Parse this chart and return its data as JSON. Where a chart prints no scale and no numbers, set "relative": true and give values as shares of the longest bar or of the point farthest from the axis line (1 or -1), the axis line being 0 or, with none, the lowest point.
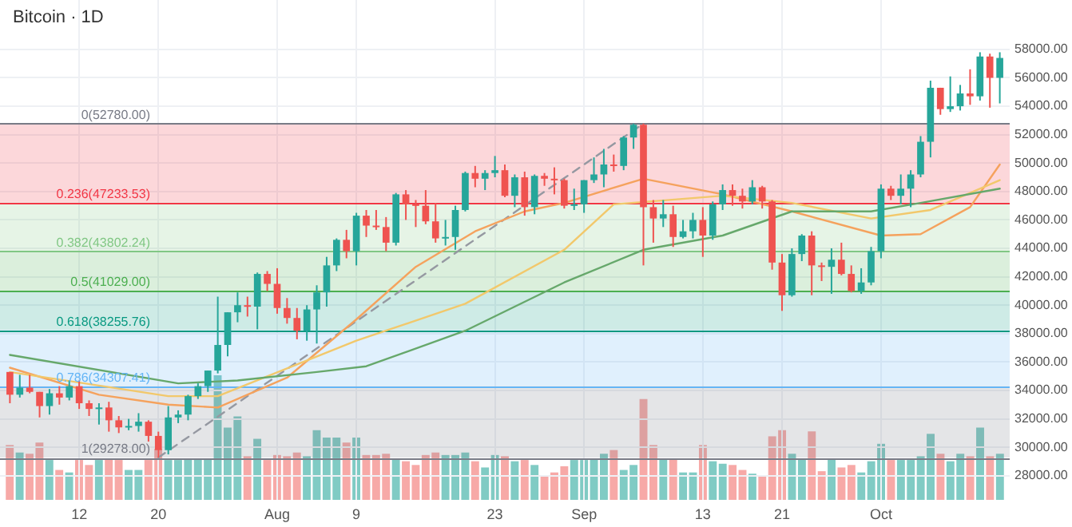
{
  "chart_data": [
    {
      "type": "candlestick",
      "title": "Bitcoin · 1D",
      "grid": true,
      "x": [
        "--07-05",
        "--07-06",
        "--07-07",
        "--07-08",
        "--07-09",
        "--07-10",
        "--07-11",
        "--07-12",
        "--07-13",
        "--07-14",
        "--07-15",
        "--07-16",
        "--07-17",
        "--07-18",
        "--07-19",
        "--07-20",
        "--07-21",
        "--07-22",
        "--07-23",
        "--07-24",
        "--07-25",
        "--07-26",
        "--07-27",
        "--07-28",
        "--07-29",
        "--07-30",
        "--07-31",
        "--08-01",
        "--08-02",
        "--08-03",
        "--08-04",
        "--08-05",
        "--08-06",
        "--08-07",
        "--08-08",
        "--08-09",
        "--08-10",
        "--08-11",
        "--08-12",
        "--08-13",
        "--08-14",
        "--08-15",
        "--08-16",
        "--08-17",
        "--08-18",
        "--08-19",
        "--08-20",
        "--08-21",
        "--08-22",
        "--08-23",
        "--08-24",
        "--08-25",
        "--08-26",
        "--08-27",
        "--08-28",
        "--08-29",
        "--08-30",
        "--08-31",
        "--09-01",
        "--09-02",
        "--09-03",
        "--09-04",
        "--09-05",
        "--09-06",
        "--09-07",
        "--09-08",
        "--09-09",
        "--09-10",
        "--09-11",
        "--09-12",
        "--09-13",
        "--09-14",
        "--09-15",
        "--09-16",
        "--09-17",
        "--09-18",
        "--09-19",
        "--09-20",
        "--09-21",
        "--09-22",
        "--09-23",
        "--09-24",
        "--09-25",
        "--09-26",
        "--09-27",
        "--09-28",
        "--09-29",
        "--09-30",
        "--10-01",
        "--10-02",
        "--10-03",
        "--10-04",
        "--10-05",
        "--10-06",
        "--10-07",
        "--10-08",
        "--10-09",
        "--10-10",
        "--10-11",
        "--10-12",
        "--10-13"
      ],
      "ohlc": [
        [
          35300,
          35300,
          33100,
          33700
        ],
        [
          33700,
          35100,
          33500,
          34200
        ],
        [
          34200,
          35100,
          33800,
          33900
        ],
        [
          33900,
          33900,
          32100,
          32900
        ],
        [
          32900,
          34100,
          32300,
          33800
        ],
        [
          33800,
          34300,
          33000,
          33500
        ],
        [
          33500,
          34700,
          33300,
          34300
        ],
        [
          34300,
          34700,
          32700,
          33100
        ],
        [
          33100,
          33300,
          32200,
          32700
        ],
        [
          32700,
          33100,
          31600,
          32800
        ],
        [
          32800,
          33200,
          31100,
          31900
        ],
        [
          31900,
          32200,
          31000,
          31400
        ],
        [
          31400,
          32000,
          31200,
          31500
        ],
        [
          31500,
          32400,
          31100,
          31800
        ],
        [
          31800,
          31900,
          30400,
          30800
        ],
        [
          30800,
          31100,
          29278,
          29800
        ],
        [
          29800,
          32900,
          29500,
          32100
        ],
        [
          32100,
          32600,
          31700,
          32300
        ],
        [
          32300,
          33700,
          31900,
          33600
        ],
        [
          33600,
          34500,
          33400,
          34300
        ],
        [
          34300,
          35400,
          33900,
          35400
        ],
        [
          35400,
          40600,
          35200,
          37200
        ],
        [
          37200,
          39500,
          36400,
          39500
        ],
        [
          39500,
          40900,
          38800,
          40000
        ],
        [
          40000,
          40600,
          39200,
          39900
        ],
        [
          39900,
          42300,
          38300,
          42200
        ],
        [
          42200,
          42400,
          41000,
          41500
        ],
        [
          41500,
          42600,
          39400,
          39800
        ],
        [
          39800,
          40500,
          38700,
          39100
        ],
        [
          39100,
          39800,
          37600,
          38200
        ],
        [
          38200,
          40000,
          37500,
          39700
        ],
        [
          39700,
          41400,
          37300,
          40900
        ],
        [
          40900,
          43400,
          39900,
          42800
        ],
        [
          42800,
          44700,
          42400,
          44600
        ],
        [
          44600,
          45300,
          43300,
          43800
        ],
        [
          43800,
          46500,
          42800,
          46300
        ],
        [
          46300,
          46700,
          44800,
          45600
        ],
        [
          45600,
          46700,
          45300,
          45500
        ],
        [
          45500,
          46200,
          43800,
          44400
        ],
        [
          44400,
          47900,
          44200,
          47800
        ],
        [
          47800,
          48100,
          46000,
          47100
        ],
        [
          47100,
          47400,
          45500,
          47000
        ],
        [
          47000,
          48100,
          45700,
          45900
        ],
        [
          45900,
          47200,
          44400,
          44700
        ],
        [
          44700,
          46000,
          44200,
          44800
        ],
        [
          44800,
          47000,
          43900,
          46700
        ],
        [
          46700,
          49400,
          46600,
          49300
        ],
        [
          49300,
          49800,
          48300,
          48900
        ],
        [
          48900,
          49500,
          48100,
          49300
        ],
        [
          49300,
          50500,
          49000,
          49500
        ],
        [
          49500,
          49900,
          47600,
          47700
        ],
        [
          47700,
          49200,
          46900,
          49000
        ],
        [
          49000,
          49400,
          46300,
          46900
        ],
        [
          46900,
          49200,
          46400,
          49100
        ],
        [
          49100,
          49300,
          48400,
          48900
        ],
        [
          48900,
          49700,
          47800,
          48800
        ],
        [
          48800,
          48900,
          46800,
          47000
        ],
        [
          47000,
          48200,
          46700,
          47100
        ],
        [
          47100,
          48800,
          46500,
          48800
        ],
        [
          48800,
          50400,
          48600,
          49200
        ],
        [
          49200,
          51000,
          48300,
          49900
        ],
        [
          49900,
          50600,
          49400,
          49800
        ],
        [
          49800,
          51900,
          49500,
          51800
        ],
        [
          51800,
          52780,
          51000,
          52700
        ],
        [
          52700,
          52780,
          42800,
          46900
        ],
        [
          46900,
          47400,
          44400,
          46100
        ],
        [
          46100,
          47400,
          45500,
          46400
        ],
        [
          46400,
          47000,
          44100,
          44800
        ],
        [
          44800,
          46000,
          44700,
          45200
        ],
        [
          45200,
          46500,
          44700,
          46000
        ],
        [
          46000,
          46900,
          43400,
          44900
        ],
        [
          44900,
          47300,
          44600,
          47100
        ],
        [
          47100,
          48500,
          46700,
          48100
        ],
        [
          48100,
          48500,
          47000,
          47700
        ],
        [
          47700,
          48200,
          46800,
          47300
        ],
        [
          47300,
          48800,
          47100,
          48300
        ],
        [
          48300,
          48400,
          46800,
          47300
        ],
        [
          47300,
          47400,
          42500,
          43000
        ],
        [
          43000,
          43600,
          39600,
          40700
        ],
        [
          40700,
          44000,
          40600,
          43600
        ],
        [
          43600,
          45000,
          43100,
          44900
        ],
        [
          44900,
          45200,
          40700,
          42800
        ],
        [
          42800,
          43000,
          41700,
          42700
        ],
        [
          42700,
          44000,
          40800,
          43200
        ],
        [
          43200,
          44400,
          42100,
          42200
        ],
        [
          42200,
          42800,
          40900,
          41000
        ],
        [
          41000,
          42600,
          40800,
          41600
        ],
        [
          41600,
          44100,
          41400,
          43800
        ],
        [
          43800,
          48500,
          43300,
          48200
        ],
        [
          48200,
          48400,
          47400,
          47700
        ],
        [
          47700,
          49200,
          47100,
          48200
        ],
        [
          48200,
          49500,
          46900,
          49200
        ],
        [
          49200,
          51900,
          49000,
          51500
        ],
        [
          51500,
          55800,
          50400,
          55300
        ],
        [
          55300,
          55300,
          53400,
          53800
        ],
        [
          53800,
          56100,
          53600,
          54000
        ],
        [
          54000,
          55500,
          53700,
          54900
        ],
        [
          54900,
          56600,
          54100,
          54700
        ],
        [
          54700,
          57800,
          54400,
          57500
        ],
        [
          57500,
          57700,
          53900,
          56000
        ],
        [
          56000,
          57800,
          54200,
          57400
        ]
      ],
      "colors": [
        "#ef5350",
        "#26a69a",
        "#ef5350",
        "#ef5350",
        "#26a69a",
        "#ef5350",
        "#26a69a",
        "#ef5350",
        "#ef5350",
        "#26a69a",
        "#ef5350",
        "#ef5350",
        "#26a69a",
        "#26a69a",
        "#ef5350",
        "#ef5350",
        "#26a69a",
        "#26a69a",
        "#26a69a",
        "#26a69a",
        "#26a69a",
        "#26a69a",
        "#26a69a",
        "#26a69a",
        "#ef5350",
        "#26a69a",
        "#ef5350",
        "#ef5350",
        "#ef5350",
        "#ef5350",
        "#26a69a",
        "#26a69a",
        "#26a69a",
        "#26a69a",
        "#ef5350",
        "#26a69a",
        "#ef5350",
        "#ef5350",
        "#ef5350",
        "#26a69a",
        "#ef5350",
        "#ef5350",
        "#ef5350",
        "#ef5350",
        "#26a69a",
        "#26a69a",
        "#26a69a",
        "#ef5350",
        "#26a69a",
        "#26a69a",
        "#ef5350",
        "#26a69a",
        "#ef5350",
        "#26a69a",
        "#ef5350",
        "#ef5350",
        "#ef5350",
        "#26a69a",
        "#26a69a",
        "#26a69a",
        "#26a69a",
        "#ef5350",
        "#26a69a",
        "#26a69a",
        "#ef5350",
        "#ef5350",
        "#26a69a",
        "#ef5350",
        "#26a69a",
        "#26a69a",
        "#ef5350",
        "#26a69a",
        "#26a69a",
        "#ef5350",
        "#ef5350",
        "#26a69a",
        "#ef5350",
        "#ef5350",
        "#ef5350",
        "#26a69a",
        "#26a69a",
        "#ef5350",
        "#ef5350",
        "#26a69a",
        "#ef5350",
        "#ef5350",
        "#26a69a",
        "#26a69a",
        "#26a69a",
        "#ef5350",
        "#26a69a",
        "#26a69a",
        "#26a69a",
        "#26a69a",
        "#ef5350",
        "#26a69a",
        "#26a69a",
        "#ef5350",
        "#26a69a",
        "#ef5350",
        "#26a69a"
      ],
      "series": [
        {
          "type": "line",
          "color": "#66a86b",
          "x": [
            "--07-05",
            "--07-22",
            "--07-28",
            "--08-05",
            "--08-10",
            "--08-20",
            "--08-30",
            "--09-07",
            "--09-15",
            "--09-22",
            "--09-30",
            "--10-05",
            "--10-13"
          ],
          "values": [
            36500,
            34500,
            34700,
            35300,
            35700,
            38200,
            41600,
            43900,
            44900,
            46600,
            46600,
            47200,
            48200
          ]
        },
        {
          "type": "line",
          "color": "#f2c86b",
          "x": [
            "--07-05",
            "--07-21",
            "--07-26",
            "--08-09",
            "--08-20",
            "--08-30",
            "--09-04",
            "--09-15",
            "--09-22",
            "--09-30",
            "--10-06",
            "--10-13"
          ],
          "values": [
            35300,
            33600,
            33600,
            37500,
            40100,
            43900,
            47100,
            47700,
            47200,
            46100,
            46700,
            48800
          ]
        },
        {
          "type": "line",
          "color": "#f5a25d",
          "x": [
            "--07-05",
            "--07-14",
            "--07-21",
            "--07-26",
            "--08-02",
            "--08-09",
            "--08-15",
            "--08-21",
            "--08-26",
            "--08-30",
            "--09-07",
            "--09-15",
            "--09-22",
            "--10-01",
            "--10-05",
            "--10-10",
            "--10-13"
          ],
          "values": [
            35600,
            33700,
            33000,
            32800,
            34900,
            39000,
            42700,
            45200,
            46600,
            47200,
            48900,
            47800,
            46600,
            44900,
            45000,
            46900,
            49900
          ]
        },
        {
          "type": "line",
          "color": "#9598a1",
          "line_style": "dashed",
          "x": [
            "--07-20",
            "--09-07"
          ],
          "values": [
            29278,
            52780
          ]
        }
      ],
      "ref_lines": [
        {
          "axis": "y",
          "value": 52780,
          "label": "0(52780.00)",
          "color": "#787b86"
        },
        {
          "axis": "y",
          "value": 47233.53,
          "label": "0.236(47233.53)",
          "color": "#f23645"
        },
        {
          "axis": "y",
          "value": 43802.24,
          "label": "0.382(43802.24)",
          "color": "#81c784"
        },
        {
          "axis": "y",
          "value": 41029,
          "label": "0.5(41029.00)",
          "color": "#4caf50"
        },
        {
          "axis": "y",
          "value": 38255.76,
          "label": "0.618(38255.76)",
          "color": "#089981"
        },
        {
          "axis": "y",
          "value": 34307.41,
          "label": "0.786(34307.41)",
          "color": "#64b5f6"
        },
        {
          "axis": "y",
          "value": 29278,
          "label": "1(29278.00)",
          "color": "#787b86"
        }
      ],
      "bands": [
        {
          "axis": "y",
          "from": 47233.53,
          "to": 52780,
          "color": "#f23645"
        },
        {
          "axis": "y",
          "from": 43802.24,
          "to": 47233.53,
          "color": "#81c784"
        },
        {
          "axis": "y",
          "from": 41029,
          "to": 43802.24,
          "color": "#4caf50"
        },
        {
          "axis": "y",
          "from": 38255.76,
          "to": 41029,
          "color": "#089981"
        },
        {
          "axis": "y",
          "from": 34307.41,
          "to": 38255.76,
          "color": "#64b5f6"
        },
        {
          "axis": "y",
          "from": 29278,
          "to": 34307.41,
          "color": "#787b86"
        }
      ],
      "xlim": [
        "--07-04",
        "--10-14"
      ],
      "xticks": [
        {
          "value": "--07-12",
          "label": "12"
        },
        {
          "value": "--07-20",
          "label": "20"
        },
        {
          "value": "--08-01",
          "label": "Aug"
        },
        {
          "value": "--08-09",
          "label": "9"
        },
        {
          "value": "--08-23",
          "label": "23"
        },
        {
          "value": "--09-01",
          "label": "Sep"
        },
        {
          "value": "--09-13",
          "label": "13"
        },
        {
          "value": "--09-21",
          "label": "21"
        },
        {
          "value": "--10-01",
          "label": "Oct"
        }
      ],
      "ylim": [
        26300,
        61500
      ],
      "yticks": [
        {
          "value": 28000,
          "label": "28000.00"
        },
        {
          "value": 30000,
          "label": "30000.00"
        },
        {
          "value": 32000,
          "label": "32000.00"
        },
        {
          "value": 34000,
          "label": "34000.00"
        },
        {
          "value": 36000,
          "label": "36000.00"
        },
        {
          "value": 38000,
          "label": "38000.00"
        },
        {
          "value": 40000,
          "label": "40000.00"
        },
        {
          "value": 42000,
          "label": "42000.00"
        },
        {
          "value": 44000,
          "label": "44000.00"
        },
        {
          "value": 46000,
          "label": "46000.00"
        },
        {
          "value": 48000,
          "label": "48000.00"
        },
        {
          "value": 50000,
          "label": "50000.00"
        },
        {
          "value": 52000,
          "label": "52000.00"
        },
        {
          "value": 54000,
          "label": "54000.00"
        },
        {
          "value": 56000,
          "label": "56000.00"
        },
        {
          "value": 58000,
          "label": "58000.00"
        }
      ]
    },
    {
      "type": "bar",
      "relative": true,
      "tick_labels": false,
      "categories": [
        null,
        null,
        null,
        null,
        null,
        null,
        null,
        null,
        null,
        null,
        null,
        null,
        null,
        null,
        null,
        null,
        null,
        null,
        null,
        null,
        null,
        null,
        null,
        null,
        null,
        null,
        null,
        null,
        null,
        null,
        null,
        null,
        null,
        null,
        null,
        null,
        null,
        null,
        null,
        null,
        null,
        null,
        null,
        null,
        null,
        null,
        null,
        null,
        null,
        null,
        null,
        null,
        null,
        null,
        null,
        null,
        null,
        null,
        null,
        null,
        null,
        null,
        null,
        null,
        null,
        null,
        null,
        null,
        null,
        null,
        null,
        null,
        null,
        null,
        null,
        null,
        null,
        null,
        null,
        null,
        null,
        null,
        null,
        null,
        null,
        null,
        null,
        null,
        null,
        null,
        null,
        null,
        null,
        null,
        null,
        null,
        null,
        null,
        null,
        null,
        null
      ],
      "values": [
        0.44,
        0.38,
        0.37,
        0.46,
        0.32,
        0.24,
        0.22,
        0.32,
        0.28,
        0.32,
        0.33,
        0.32,
        0.24,
        0.24,
        0.32,
        0.41,
        0.32,
        0.32,
        0.33,
        0.33,
        0.33,
        1,
        0.58,
        0.67,
        0.35,
        0.49,
        0.32,
        0.36,
        0.35,
        0.38,
        0.35,
        0.56,
        0.5,
        0.5,
        0.46,
        0.5,
        0.36,
        0.36,
        0.37,
        0.33,
        0.31,
        0.28,
        0.36,
        0.38,
        0.36,
        0.36,
        0.38,
        0.31,
        0.26,
        0.36,
        0.35,
        0.31,
        0.32,
        0.28,
        0.19,
        0.22,
        0.27,
        0.32,
        0.32,
        0.33,
        0.37,
        0.4,
        0.24,
        0.28,
        0.81,
        0.44,
        0.33,
        0.33,
        0.22,
        0.22,
        0.44,
        0.31,
        0.29,
        0.28,
        0.24,
        0.21,
        0.19,
        0.51,
        0.56,
        0.37,
        0.33,
        0.55,
        0.23,
        0.33,
        0.26,
        0.28,
        0.22,
        0.31,
        0.45,
        0.32,
        0.32,
        0.32,
        0.35,
        0.53,
        0.37,
        0.31,
        0.37,
        0.35,
        0.58,
        0.35,
        0.37
      ],
      "colors": [
        "#f7a9a7",
        "#80cbc4",
        "#f7a9a7",
        "#f7a9a7",
        "#80cbc4",
        "#f7a9a7",
        "#80cbc4",
        "#f7a9a7",
        "#f7a9a7",
        "#80cbc4",
        "#f7a9a7",
        "#f7a9a7",
        "#80cbc4",
        "#80cbc4",
        "#f7a9a7",
        "#f7a9a7",
        "#80cbc4",
        "#80cbc4",
        "#80cbc4",
        "#80cbc4",
        "#80cbc4",
        "#80cbc4",
        "#80cbc4",
        "#80cbc4",
        "#f7a9a7",
        "#80cbc4",
        "#f7a9a7",
        "#f7a9a7",
        "#f7a9a7",
        "#f7a9a7",
        "#80cbc4",
        "#80cbc4",
        "#80cbc4",
        "#80cbc4",
        "#f7a9a7",
        "#80cbc4",
        "#f7a9a7",
        "#f7a9a7",
        "#f7a9a7",
        "#80cbc4",
        "#f7a9a7",
        "#f7a9a7",
        "#f7a9a7",
        "#f7a9a7",
        "#80cbc4",
        "#80cbc4",
        "#80cbc4",
        "#f7a9a7",
        "#80cbc4",
        "#80cbc4",
        "#f7a9a7",
        "#80cbc4",
        "#f7a9a7",
        "#80cbc4",
        "#f7a9a7",
        "#f7a9a7",
        "#f7a9a7",
        "#80cbc4",
        "#80cbc4",
        "#80cbc4",
        "#80cbc4",
        "#f7a9a7",
        "#80cbc4",
        "#80cbc4",
        "#f7a9a7",
        "#f7a9a7",
        "#80cbc4",
        "#f7a9a7",
        "#80cbc4",
        "#80cbc4",
        "#f7a9a7",
        "#80cbc4",
        "#80cbc4",
        "#f7a9a7",
        "#f7a9a7",
        "#80cbc4",
        "#f7a9a7",
        "#f7a9a7",
        "#f7a9a7",
        "#80cbc4",
        "#80cbc4",
        "#f7a9a7",
        "#f7a9a7",
        "#80cbc4",
        "#f7a9a7",
        "#f7a9a7",
        "#80cbc4",
        "#80cbc4",
        "#80cbc4",
        "#f7a9a7",
        "#80cbc4",
        "#80cbc4",
        "#80cbc4",
        "#80cbc4",
        "#f7a9a7",
        "#80cbc4",
        "#80cbc4",
        "#f7a9a7",
        "#80cbc4",
        "#f7a9a7",
        "#80cbc4"
      ]
    }
  ]
}
